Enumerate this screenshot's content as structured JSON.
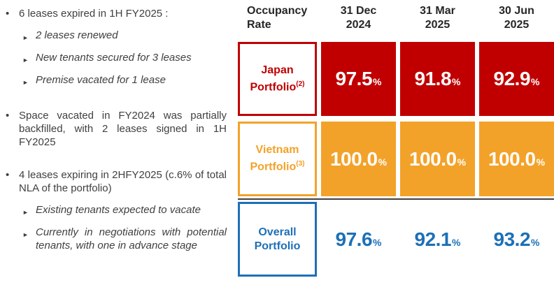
{
  "left_panel": {
    "bullet_marker": "•",
    "sub_marker": "►",
    "bullets": [
      {
        "text": "6 leases expired in 1H FY2025 :",
        "subs": [
          "2 leases renewed",
          "New tenants secured for 3 leases",
          "Premise vacated for 1 lease"
        ]
      },
      {
        "text": "Space vacated in FY2024 was partially backfilled, with 2 leases signed in 1H FY2025",
        "subs": []
      },
      {
        "text": "4 leases expiring in 2HFY2025 (c.6% of total NLA of the portfolio)",
        "subs": [
          "Existing tenants expected to vacate",
          "Currently in negotiations with potential tenants, with one in advance stage"
        ]
      }
    ]
  },
  "table": {
    "header": {
      "label": "Occupancy\nRate",
      "columns": [
        "31 Dec\n2024",
        "31 Mar\n2025",
        "30 Jun\n2025"
      ]
    },
    "percent_sign": "%",
    "rows": [
      {
        "label": "Japan Portfolio",
        "footnote": "(2)",
        "values": [
          "97.5",
          "91.8",
          "92.9"
        ],
        "fill": "#c00000"
      },
      {
        "label": "Vietnam Portfolio",
        "footnote": "(3)",
        "values": [
          "100.0",
          "100.0",
          "100.0"
        ],
        "fill": "#f3a229"
      },
      {
        "label": "Overall Portfolio",
        "footnote": "",
        "values": [
          "97.6",
          "92.1",
          "93.2"
        ],
        "fill": "none"
      }
    ]
  },
  "colors": {
    "japan_red": "#c00000",
    "vietnam_orange": "#f3a229",
    "overall_blue": "#1d70b7",
    "body_text": "#3f3f3f",
    "separator": "#404040"
  }
}
